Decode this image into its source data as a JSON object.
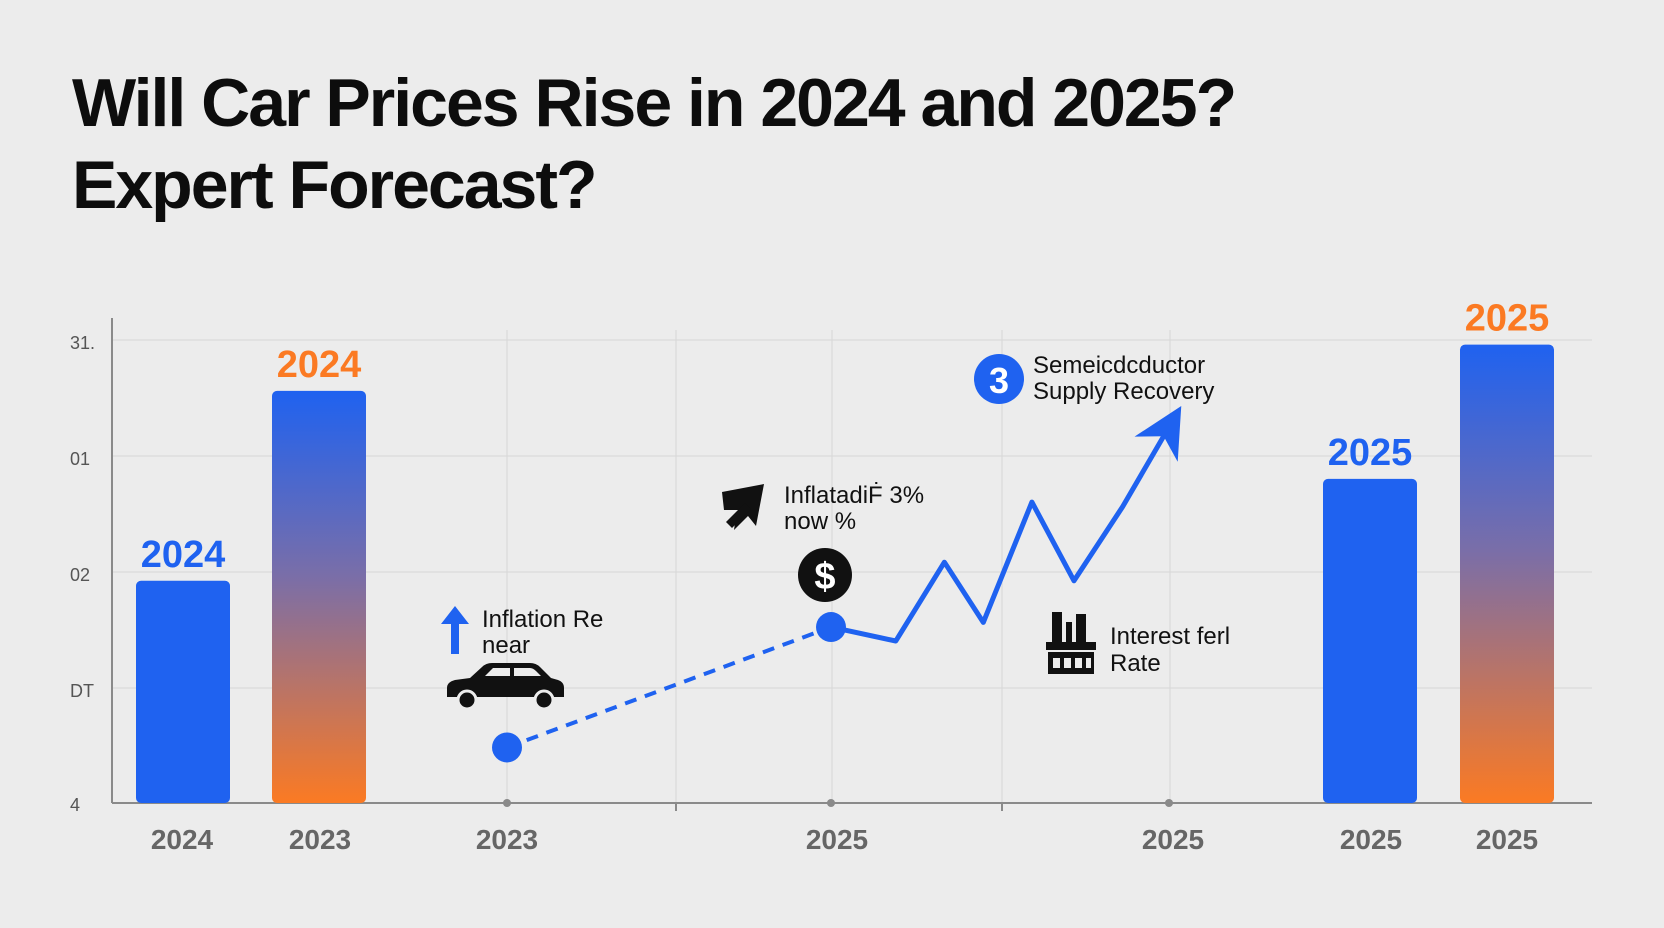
{
  "title_lines": [
    "Will Car Prices Rise in 2024 and 2025?",
    "Expert Forecast?"
  ],
  "colors": {
    "blue": "#1f62f0",
    "orange": "#fb7a23",
    "grid": "#d6d6d6",
    "axis": "#8a8a8a",
    "text_dark": "#111111",
    "tick": "#555555"
  },
  "chart_data": {
    "type": "bar",
    "y_tick_labels": [
      "31.",
      "01",
      "02",
      "DT",
      "4"
    ],
    "x_tick_labels": [
      "2024",
      "2023",
      "2023",
      "2025",
      "2025",
      "2025",
      "2025"
    ],
    "bars": [
      {
        "category": "2024",
        "label": "2024",
        "value": 0.48,
        "style": "blue"
      },
      {
        "category": "2023",
        "label": "2024",
        "value": 0.89,
        "style": "gradient"
      },
      {
        "category": "2025",
        "label": "2025",
        "value": 0.7,
        "style": "blue"
      },
      {
        "category": "2025",
        "label": "2025",
        "value": 0.99,
        "style": "gradient"
      }
    ],
    "line_series": {
      "dashed_points": [
        [
          0,
          0.12
        ],
        [
          1,
          0.38
        ]
      ],
      "solid_points": [
        [
          1,
          0.38
        ],
        [
          1.2,
          0.35
        ],
        [
          1.35,
          0.52
        ],
        [
          1.47,
          0.39
        ],
        [
          1.62,
          0.65
        ],
        [
          1.75,
          0.48
        ],
        [
          1.9,
          0.64
        ],
        [
          2.05,
          0.82
        ]
      ]
    },
    "annotations": [
      {
        "icon": "arrow-up-icon",
        "lines": [
          "Inflation Re",
          "near"
        ]
      },
      {
        "icon": "arrow-up-right-icon",
        "lines": [
          "InflatadiḞ 3%",
          "now %"
        ]
      },
      {
        "icon": "number-3-badge-icon",
        "badge": "3",
        "lines": [
          "Semeicdcductor",
          "Supply Recovery"
        ]
      },
      {
        "icon": "factory-icon",
        "lines": [
          "Interest ferl",
          "Rate"
        ]
      }
    ],
    "dollar_symbol": "$",
    "grid": true
  }
}
